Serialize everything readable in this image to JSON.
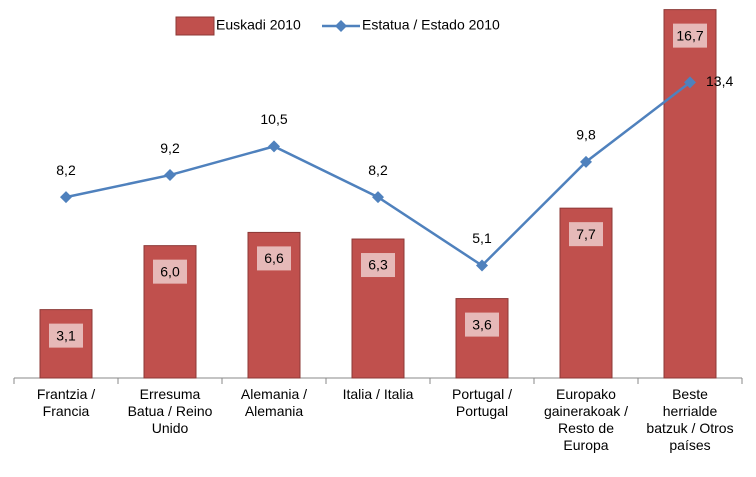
{
  "chart_data": {
    "type": "bar_line",
    "categories": [
      "Frantzia /\nFrancia",
      "Erresuma\nBatua / Reino\nUnido",
      "Alemania /\nAlemania",
      "Italia / Italia",
      "Portugal /\nPortugal",
      "Europako\ngainerakoak /\nResto de\nEuropa",
      "Beste\nherrialde\nbatzuk / Otros\npaíses"
    ],
    "series": [
      {
        "name": "Euskadi 2010",
        "type": "bar",
        "color": "#c0504d",
        "values": [
          3.1,
          6.0,
          6.6,
          6.3,
          3.6,
          7.7,
          16.7
        ],
        "value_labels": [
          "3,1",
          "6,0",
          "6,6",
          "6,3",
          "3,6",
          "7,7",
          "16,7"
        ]
      },
      {
        "name": "Estatua / Estado 2010",
        "type": "line",
        "color": "#4f81bd",
        "values": [
          8.2,
          9.2,
          10.5,
          8.2,
          5.1,
          9.8,
          13.4
        ],
        "value_labels": [
          "8,2",
          "9,2",
          "10,5",
          "8,2",
          "5,1",
          "9,8",
          "13,4"
        ]
      }
    ],
    "ylim": [
      0,
      17
    ]
  }
}
